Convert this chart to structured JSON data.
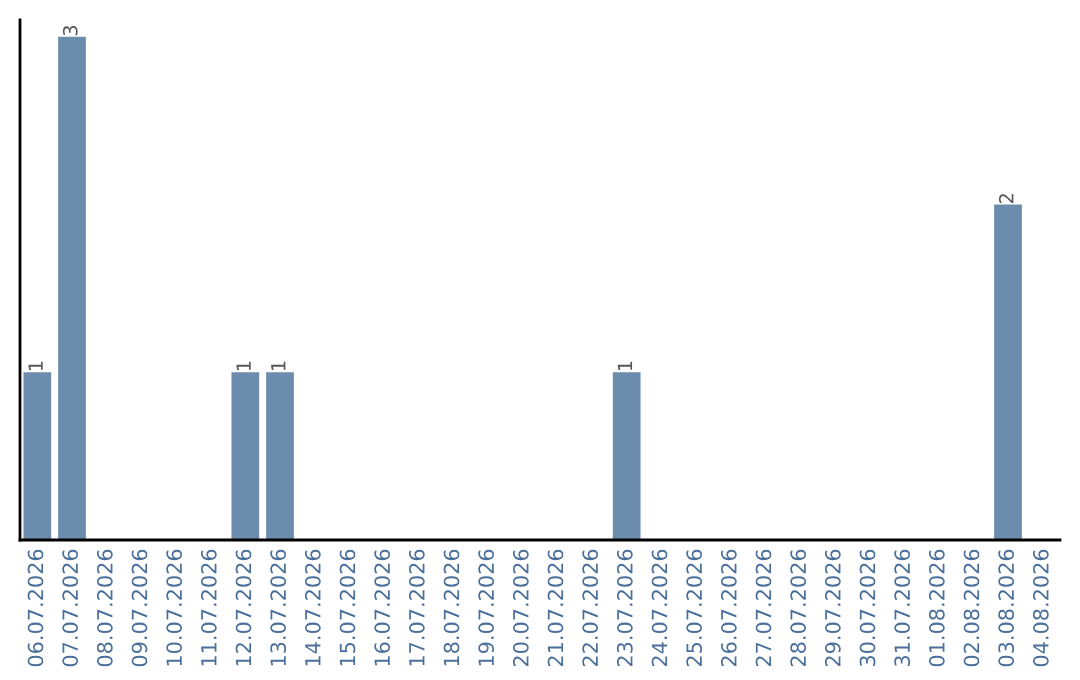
{
  "chart_data": {
    "type": "bar",
    "categories": [
      "06.07.2026",
      "07.07.2026",
      "08.07.2026",
      "09.07.2026",
      "10.07.2026",
      "11.07.2026",
      "12.07.2026",
      "13.07.2026",
      "14.07.2026",
      "15.07.2026",
      "16.07.2026",
      "17.07.2026",
      "18.07.2026",
      "19.07.2026",
      "20.07.2026",
      "21.07.2026",
      "22.07.2026",
      "23.07.2026",
      "24.07.2026",
      "25.07.2026",
      "26.07.2026",
      "27.07.2026",
      "28.07.2026",
      "29.07.2026",
      "30.07.2026",
      "31.07.2026",
      "01.08.2026",
      "02.08.2026",
      "03.08.2026",
      "04.08.2026"
    ],
    "values": [
      1,
      3,
      0,
      0,
      0,
      0,
      1,
      1,
      0,
      0,
      0,
      0,
      0,
      0,
      0,
      0,
      0,
      1,
      0,
      0,
      0,
      0,
      0,
      0,
      0,
      0,
      0,
      0,
      2,
      0
    ],
    "value_labels": [
      "1",
      "3",
      null,
      null,
      null,
      null,
      "1",
      "1",
      null,
      null,
      null,
      null,
      null,
      null,
      null,
      null,
      null,
      "1",
      null,
      null,
      null,
      null,
      null,
      null,
      null,
      null,
      null,
      null,
      "2",
      null
    ],
    "color": "#6b8cad",
    "ylim": [
      0,
      3.1
    ],
    "tick_labels": "x",
    "grid": false,
    "legend": false
  }
}
